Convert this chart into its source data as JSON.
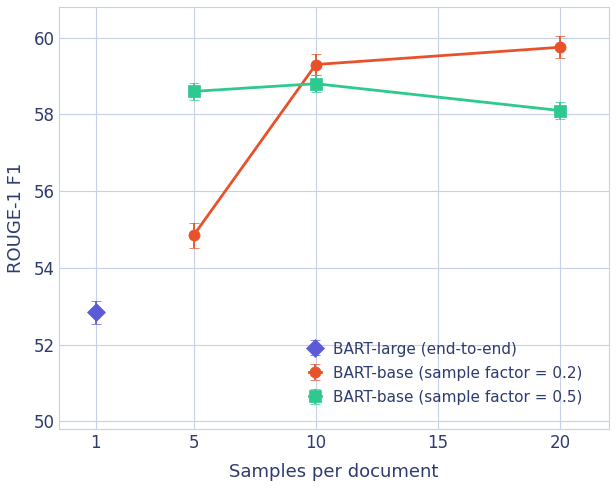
{
  "title": "",
  "xlabel": "Samples per document",
  "ylabel": "ROUGE-1 F1",
  "xlim": [
    -0.5,
    22
  ],
  "ylim": [
    49.8,
    60.8
  ],
  "yticks": [
    50,
    52,
    54,
    56,
    58,
    60
  ],
  "xticks": [
    1,
    5,
    10,
    15,
    20
  ],
  "series": [
    {
      "label": "BART-large (end-to-end)",
      "x": [
        1
      ],
      "y": [
        52.85
      ],
      "yerr": [
        0.3
      ],
      "color": "#5B5BD6",
      "marker": "D",
      "markersize": 9,
      "linewidth": 2.0
    },
    {
      "label": "BART-base (sample factor = 0.2)",
      "x": [
        5,
        10,
        20
      ],
      "y": [
        54.85,
        59.3,
        59.75
      ],
      "yerr": [
        0.32,
        0.28,
        0.28
      ],
      "color": "#E8522A",
      "marker": "o",
      "markersize": 8,
      "linewidth": 2.0
    },
    {
      "label": "BART-base (sample factor = 0.5)",
      "x": [
        5,
        10,
        20
      ],
      "y": [
        58.6,
        58.8,
        58.1
      ],
      "yerr": [
        0.22,
        0.22,
        0.22
      ],
      "color": "#2DC98E",
      "marker": "s",
      "markersize": 8,
      "linewidth": 2.0
    }
  ],
  "text_color": "#2E3B6E",
  "background_color": "#FFFFFF",
  "plot_bg_color": "#FFFFFF",
  "grid_color": "#C8D0E8",
  "legend_fontsize": 11,
  "axis_label_fontsize": 13,
  "tick_fontsize": 12
}
